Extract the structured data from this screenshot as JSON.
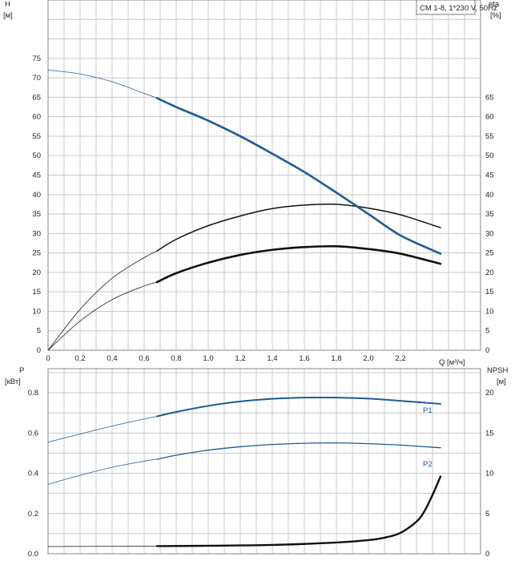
{
  "chart_data": [
    {
      "type": "line",
      "title_box": "CM 1-8, 1*230 V, 50Hz",
      "ylabel_left": "H",
      "ylabel_left_unit": "[м]",
      "ylabel_right": "eta",
      "ylabel_right_unit": "[%]",
      "xlabel": "Q [м³/ч]",
      "xlim": [
        0,
        2.7
      ],
      "ylim": [
        0,
        90
      ],
      "x_ticks": [
        "0",
        "0,2",
        "0,4",
        "0,6",
        "0,8",
        "1,0",
        "1,2",
        "1,4",
        "1,6",
        "1,8",
        "2,0",
        "2,2"
      ],
      "y_ticks_left": [
        "0",
        "5",
        "10",
        "15",
        "20",
        "25",
        "30",
        "35",
        "40",
        "45",
        "50",
        "55",
        "60",
        "65",
        "70",
        "75"
      ],
      "y_ticks_right": [
        "0",
        "5",
        "10",
        "15",
        "20",
        "25",
        "30",
        "35",
        "40",
        "45",
        "50",
        "55",
        "60",
        "65"
      ],
      "grid": true,
      "colors": {
        "head": "#1f5a96",
        "eta": "#111111",
        "thin": "#666666"
      },
      "series": [
        {
          "key": "head",
          "x": [
            0,
            0.2,
            0.4,
            0.6,
            0.68,
            0.8,
            1.0,
            1.2,
            1.4,
            1.6,
            1.8,
            2.0,
            2.2,
            2.45
          ],
          "y": [
            72,
            71,
            69,
            66,
            64.8,
            62.5,
            59,
            55,
            50.5,
            45.8,
            40.5,
            35,
            29.5,
            24.8
          ],
          "solid_from": 0.68
        },
        {
          "key": "eta_motor_pump",
          "x": [
            0,
            0.2,
            0.4,
            0.6,
            0.68,
            0.8,
            1.0,
            1.2,
            1.4,
            1.6,
            1.8,
            2.0,
            2.2,
            2.45
          ],
          "y": [
            0,
            10.5,
            18.5,
            23.8,
            25.5,
            28.5,
            32,
            34.5,
            36.4,
            37.3,
            37.5,
            36.5,
            34.8,
            31.5
          ],
          "solid_from": 0.68
        },
        {
          "key": "eta_total",
          "x": [
            0,
            0.2,
            0.4,
            0.6,
            0.68,
            0.8,
            1.0,
            1.2,
            1.4,
            1.6,
            1.8,
            2.0,
            2.2,
            2.45
          ],
          "y": [
            0,
            7.5,
            13,
            16.5,
            17.5,
            19.8,
            22.5,
            24.5,
            25.8,
            26.5,
            26.7,
            26,
            24.8,
            22.2
          ],
          "solid_from": 0.68
        }
      ]
    },
    {
      "type": "line",
      "ylabel_left": "P",
      "ylabel_left_unit": "[кВт]",
      "ylabel_right": "NPSH",
      "ylabel_right_unit": "[м]",
      "xlim": [
        0,
        2.7
      ],
      "ylim": [
        0,
        0.92
      ],
      "y_ticks_left": [
        "0.0",
        "0.2",
        "0.4",
        "0.6",
        "0.8"
      ],
      "y_ticks_right": [
        "0",
        "5",
        "10",
        "15",
        "20"
      ],
      "npsh_lim": [
        0,
        23
      ],
      "grid": true,
      "series": [
        {
          "name": "P1",
          "x": [
            0,
            0.2,
            0.4,
            0.6,
            0.68,
            0.8,
            1.0,
            1.2,
            1.4,
            1.6,
            1.8,
            2.0,
            2.2,
            2.45
          ],
          "y": [
            0.555,
            0.595,
            0.635,
            0.67,
            0.683,
            0.705,
            0.735,
            0.757,
            0.77,
            0.776,
            0.776,
            0.771,
            0.76,
            0.745
          ],
          "solid_from": 0.68
        },
        {
          "name": "P2",
          "x": [
            0,
            0.2,
            0.4,
            0.6,
            0.68,
            0.8,
            1.0,
            1.2,
            1.4,
            1.6,
            1.8,
            2.0,
            2.2,
            2.45
          ],
          "y": [
            0.345,
            0.39,
            0.43,
            0.46,
            0.47,
            0.49,
            0.515,
            0.532,
            0.543,
            0.549,
            0.551,
            0.547,
            0.54,
            0.527
          ],
          "solid_from": 0.68
        },
        {
          "key": "npsh",
          "x": [
            0,
            0.68,
            1.0,
            1.4,
            1.8,
            2.0,
            2.1,
            2.2,
            2.3,
            2.35,
            2.4,
            2.45
          ],
          "y": [
            0.9,
            0.95,
            1.0,
            1.1,
            1.4,
            1.7,
            2.0,
            2.6,
            4.0,
            5.3,
            7.3,
            9.6
          ],
          "solid_from": 0.68
        }
      ]
    }
  ]
}
